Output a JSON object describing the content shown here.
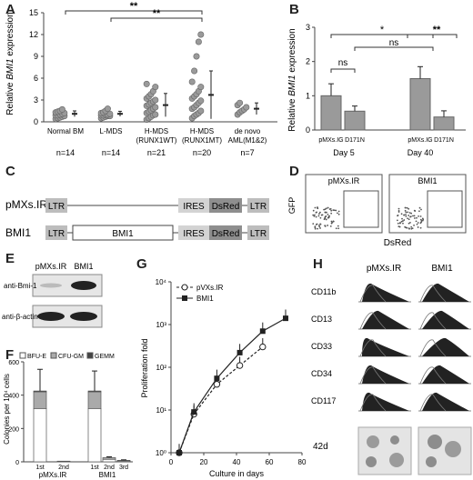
{
  "panels": {
    "A": "A",
    "B": "B",
    "C": "C",
    "D": "D",
    "E": "E",
    "F": "F",
    "G": "G",
    "H": "H"
  },
  "A": {
    "ylabel_pre": "Relative ",
    "ylabel_ital": "BMI1",
    "ylabel_post": " expression",
    "yticks": [
      "0",
      "3",
      "6",
      "9",
      "12",
      "15"
    ],
    "sig1": "**",
    "sig2": "**",
    "groups": [
      {
        "l1": "Normal BM",
        "l2": "",
        "n": "n=14"
      },
      {
        "l1": "L-MDS",
        "l2": "",
        "n": "n=14"
      },
      {
        "l1": "H-MDS",
        "l2": "(RUNX1WT)",
        "n": "n=21"
      },
      {
        "l1": "H-MDS",
        "l2": "(RUNX1MT)",
        "n": "n=20"
      },
      {
        "l1": "de novo",
        "l2": "AML(M1&2)",
        "n": "n=7"
      }
    ]
  },
  "B": {
    "ylabel_pre": "Relative ",
    "ylabel_ital": "BMI1",
    "ylabel_post": " expression",
    "yticks": [
      "0",
      "1",
      "2",
      "3"
    ],
    "bars": [
      "pMXs.IG",
      "D171N",
      "pMXs.IG",
      "D171N"
    ],
    "days": [
      "Day 5",
      "Day 40"
    ],
    "ns1": "ns",
    "ns2": "ns",
    "star1": "*",
    "star2": "**"
  },
  "C": {
    "rows": [
      {
        "name": "pMXs.IR",
        "ltr1": "LTR",
        "ires": "IRES",
        "dsred": "DsRed",
        "ltr2": "LTR"
      },
      {
        "name": "BMI1",
        "ltr1": "LTR",
        "insert": "BMI1",
        "ires": "IRES",
        "dsred": "DsRed",
        "ltr2": "LTR"
      }
    ]
  },
  "D": {
    "titles": [
      "pMXs.IR",
      "BMI1"
    ],
    "ylabel": "GFP",
    "xlabel": "DsRed"
  },
  "E": {
    "cols": [
      "pMXs.IR",
      "BMI1"
    ],
    "rows": [
      "anti-Bmi-1",
      "anti-β-actin"
    ]
  },
  "F": {
    "legend": [
      "BFU-E",
      "CFU-GM",
      "GEMM"
    ],
    "ylabel": "Colonies per 10⁴ cells",
    "yticks": [
      "0",
      "200",
      "400",
      "600"
    ],
    "xticks": [
      "1st",
      "2nd",
      "1st",
      "2nd",
      "3rd"
    ],
    "groups": [
      "pMXs.IR",
      "BMI1"
    ]
  },
  "G": {
    "legend": [
      "pVXs.IR",
      "BMI1"
    ],
    "ylabel": "Proliferation fold",
    "xlabel": "Culture in days",
    "yticks": [
      "10⁰",
      "10¹",
      "10²",
      "10³",
      "10⁴"
    ],
    "xticks": [
      "0",
      "20",
      "40",
      "60",
      "80"
    ]
  },
  "H": {
    "cols": [
      "pMXs.IR",
      "BMI1"
    ],
    "rows": [
      "CD11b",
      "CD13",
      "CD33",
      "CD34",
      "CD117"
    ],
    "bottom": "42d"
  },
  "chart_data": [
    {
      "type": "scatter",
      "panel": "A",
      "categories": [
        "Normal BM",
        "L-MDS",
        "H-MDS (RUNX1WT)",
        "H-MDS (RUNX1MT)",
        "de novo AML(M1&2)"
      ],
      "ylim": [
        0,
        15
      ],
      "series": [
        {
          "points": [
            0.4,
            0.5,
            0.6,
            0.7,
            0.8,
            0.9,
            0.9,
            1.0,
            1.1,
            1.2,
            1.3,
            1.4,
            1.5,
            1.7
          ]
        },
        {
          "points": [
            0.5,
            0.6,
            0.7,
            0.8,
            0.8,
            0.9,
            0.9,
            1.0,
            1.0,
            1.1,
            1.2,
            1.3,
            1.5,
            1.8
          ]
        },
        {
          "points": [
            0.3,
            0.5,
            0.7,
            0.9,
            1.0,
            1.2,
            1.4,
            1.6,
            1.8,
            2.0,
            2.2,
            2.4,
            2.6,
            2.8,
            3.0,
            3.2,
            3.5,
            3.8,
            4.2,
            4.8,
            5.2
          ]
        },
        {
          "points": [
            0.5,
            0.8,
            1.0,
            1.2,
            1.5,
            1.8,
            2.0,
            2.3,
            2.6,
            2.9,
            3.2,
            3.5,
            3.8,
            4.2,
            4.8,
            5.5,
            7.0,
            9.0,
            11.0,
            12.0
          ]
        },
        {
          "points": [
            1.0,
            1.3,
            1.5,
            1.7,
            2.0,
            2.3,
            2.6
          ]
        }
      ],
      "mean": [
        1.1,
        1.1,
        2.3,
        3.7,
        1.8
      ],
      "sd": [
        0.4,
        0.35,
        1.6,
        3.3,
        0.8
      ]
    },
    {
      "type": "bar",
      "panel": "B",
      "categories": [
        "pMXs.IG Day 5",
        "D171N Day 5",
        "pMXs.IG Day 40",
        "D171N Day 40"
      ],
      "values": [
        1.0,
        0.55,
        1.5,
        0.38
      ],
      "errors": [
        0.35,
        0.15,
        0.35,
        0.18
      ],
      "ylim": [
        0,
        3
      ]
    },
    {
      "type": "bar",
      "panel": "F",
      "categories": [
        "pMXs.IR 1st",
        "pMXs.IR 2nd",
        "BMI1 1st",
        "BMI1 2nd",
        "BMI1 3rd"
      ],
      "series": [
        {
          "name": "BFU-E",
          "values": [
            320,
            2,
            320,
            15,
            5
          ]
        },
        {
          "name": "CFU-GM",
          "values": [
            100,
            2,
            100,
            10,
            4
          ]
        },
        {
          "name": "GEMM",
          "values": [
            5,
            0,
            5,
            0,
            0
          ]
        }
      ],
      "errors": [
        130,
        0,
        120,
        5,
        3
      ],
      "ylim": [
        0,
        600
      ]
    },
    {
      "type": "line",
      "panel": "G",
      "xlim": [
        0,
        80
      ],
      "log_y": true,
      "ylim": [
        1,
        10000
      ],
      "series": [
        {
          "name": "pVXs.IR",
          "x": [
            5,
            14,
            28,
            42,
            56
          ],
          "y": [
            1,
            8,
            40,
            110,
            300
          ]
        },
        {
          "name": "BMI1",
          "x": [
            5,
            14,
            28,
            42,
            56,
            70
          ],
          "y": [
            1,
            9,
            55,
            220,
            700,
            1400
          ]
        }
      ]
    }
  ]
}
